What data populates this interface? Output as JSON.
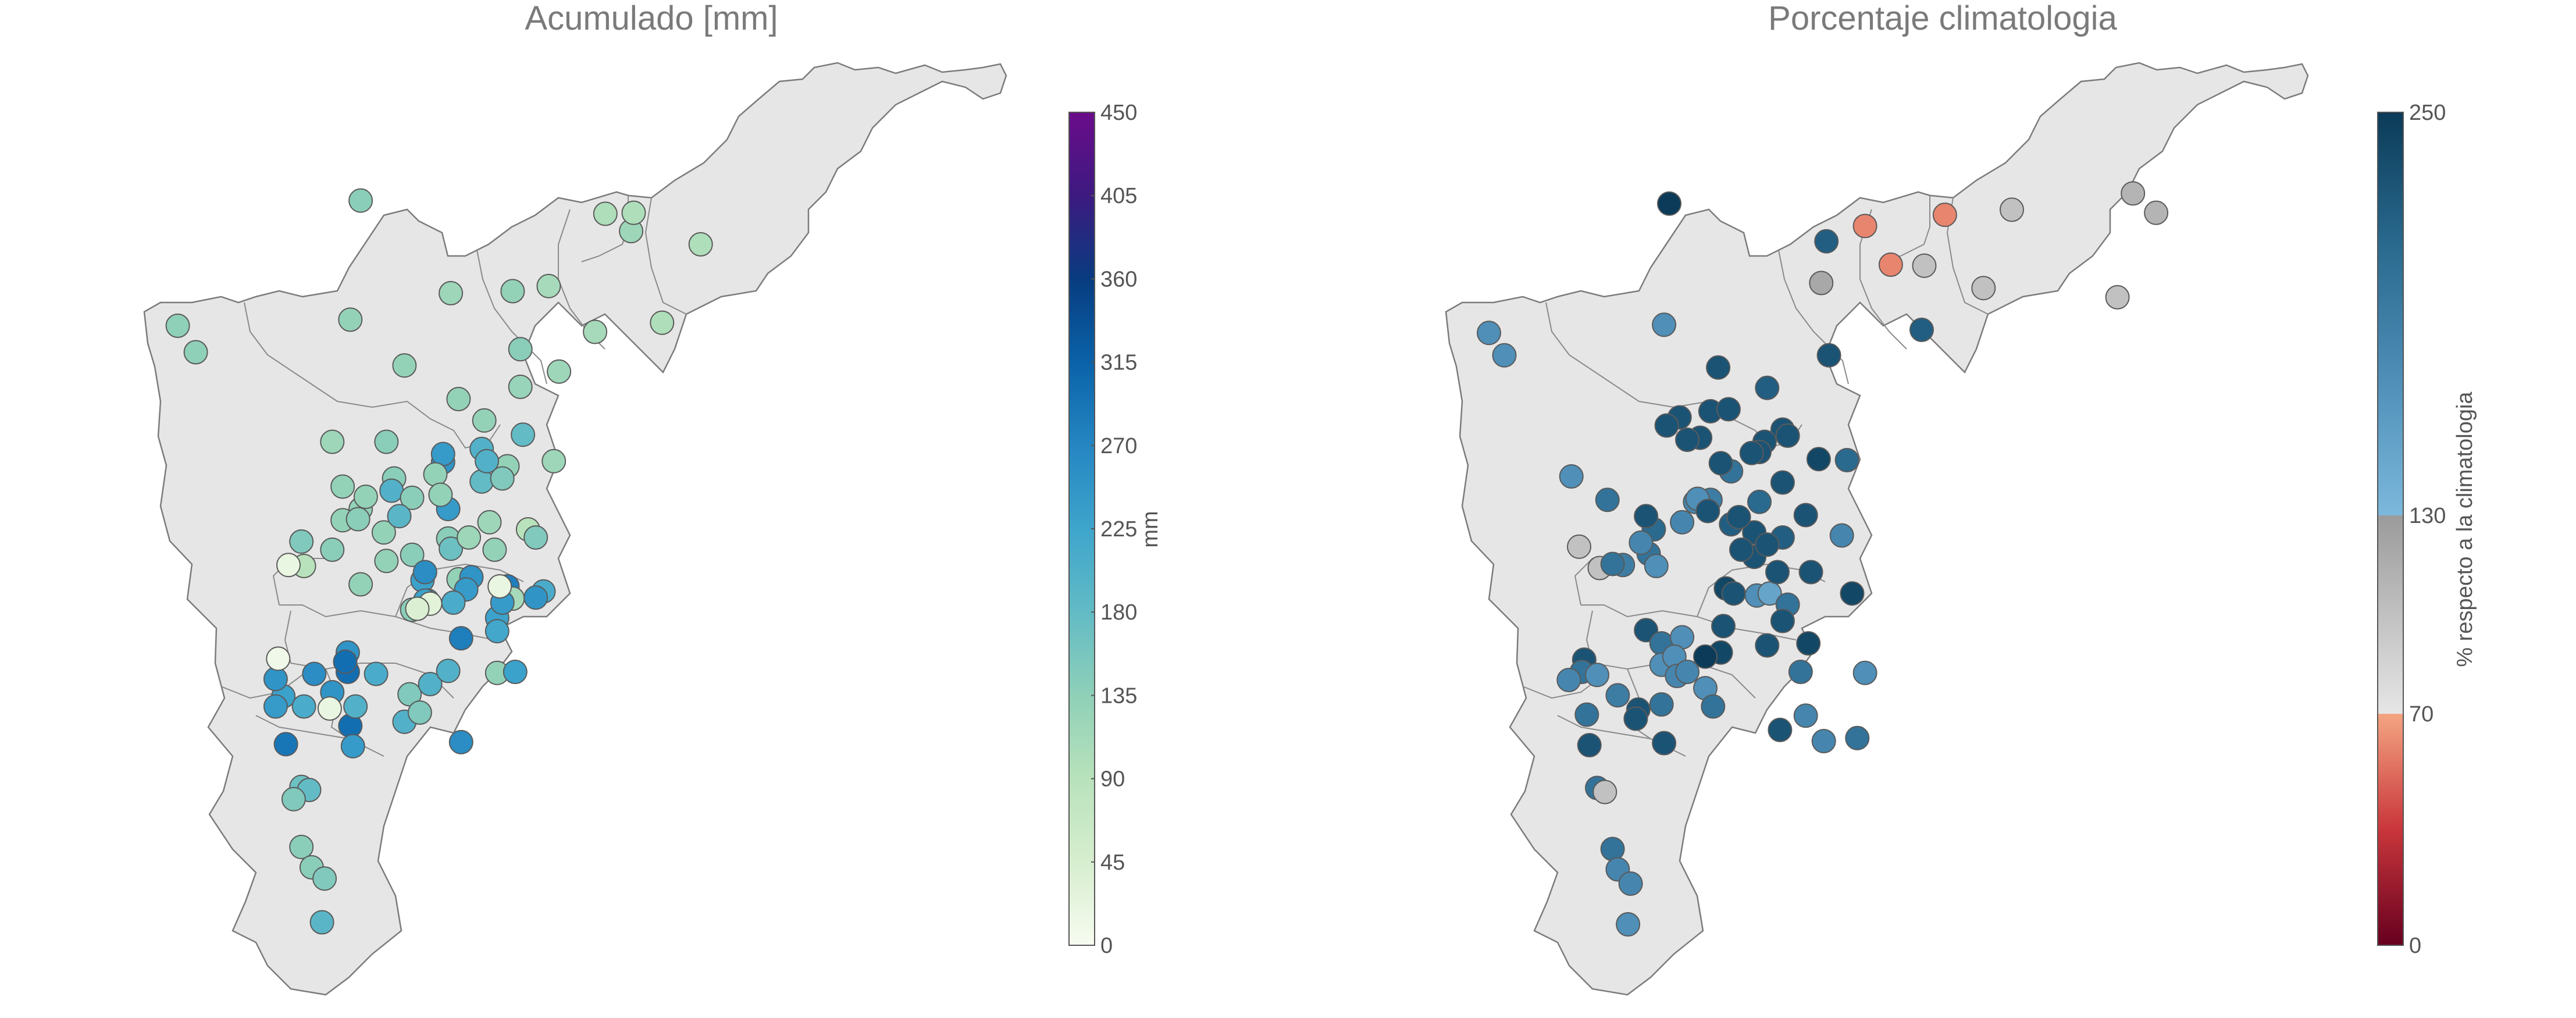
{
  "panels": {
    "left": {
      "title": "Acumulado [mm]",
      "colorbar": {
        "label": "mm",
        "min": 0,
        "max": 450,
        "ticks": [
          "0",
          "45",
          "90",
          "135",
          "180",
          "225",
          "270",
          "315",
          "360",
          "405",
          "450"
        ],
        "colors": [
          "#f7fcf0",
          "#d7eecf",
          "#b8e2bb",
          "#8fd0b8",
          "#62bbc5",
          "#3ea5cc",
          "#2586c2",
          "#0a62a8",
          "#083c80",
          "#3d1a80",
          "#6a0c8a"
        ]
      }
    },
    "right": {
      "title": "Porcentaje climatologia",
      "colorbar": {
        "label": "% respecto a la climatologia",
        "ticks": [
          "0",
          "70",
          "130",
          "250"
        ],
        "segments": [
          {
            "from": 0,
            "to": 70,
            "colors": [
              "#67001f",
              "#c9363b",
              "#f4a582"
            ]
          },
          {
            "from": 70,
            "to": 130,
            "colors": [
              "#e6e6e6",
              "#9b9b9b"
            ]
          },
          {
            "from": 130,
            "to": 250,
            "colors": [
              "#7cb8dc",
              "#4f8fb8",
              "#2a6a8f",
              "#0b3b58"
            ]
          }
        ]
      }
    }
  },
  "chart_data": [
    {
      "type": "scatter",
      "title": "Acumulado [mm]",
      "colorbar_label": "mm",
      "value_range": [
        0,
        450
      ],
      "points": [
        [
          0.14,
          0.197,
          140
        ],
        [
          0.069,
          0.32,
          135
        ],
        [
          0.076,
          0.346,
          135
        ],
        [
          0.136,
          0.314,
          130
        ],
        [
          0.157,
          0.359,
          130
        ],
        [
          0.178,
          0.392,
          130
        ],
        [
          0.202,
          0.38,
          125
        ],
        [
          0.217,
          0.365,
          120
        ],
        [
          0.231,
          0.326,
          110
        ],
        [
          0.257,
          0.317,
          100
        ],
        [
          0.245,
          0.227,
          120
        ],
        [
          0.199,
          0.286,
          130
        ],
        [
          0.175,
          0.288,
          120
        ],
        [
          0.213,
          0.281,
          110
        ],
        [
          0.246,
          0.209,
          100
        ],
        [
          0.272,
          0.24,
          100
        ],
        [
          0.235,
          0.21,
          100
        ],
        [
          0.202,
          0.343,
          140
        ],
        [
          0.129,
          0.434,
          120
        ],
        [
          0.149,
          0.523,
          130
        ],
        [
          0.15,
          0.434,
          140
        ],
        [
          0.203,
          0.427,
          180
        ],
        [
          0.188,
          0.413,
          130
        ],
        [
          0.14,
          0.574,
          130
        ],
        [
          0.15,
          0.551,
          130
        ],
        [
          0.178,
          0.569,
          130
        ],
        [
          0.14,
          0.5,
          130
        ],
        [
          0.133,
          0.478,
          130
        ],
        [
          0.129,
          0.54,
          140
        ],
        [
          0.16,
          0.545,
          140
        ],
        [
          0.153,
          0.47,
          140
        ],
        [
          0.197,
          0.458,
          130
        ],
        [
          0.187,
          0.473,
          180
        ],
        [
          0.133,
          0.511,
          130
        ],
        [
          0.117,
          0.532,
          150
        ],
        [
          0.118,
          0.556,
          90
        ],
        [
          0.112,
          0.555,
          20
        ],
        [
          0.152,
          0.482,
          200
        ],
        [
          0.142,
          0.488,
          130
        ],
        [
          0.139,
          0.51,
          140
        ],
        [
          0.16,
          0.489,
          140
        ],
        [
          0.155,
          0.507,
          190
        ],
        [
          0.174,
          0.5,
          240
        ],
        [
          0.172,
          0.454,
          250
        ],
        [
          0.172,
          0.446,
          240
        ],
        [
          0.169,
          0.466,
          130
        ],
        [
          0.171,
          0.486,
          130
        ],
        [
          0.187,
          0.441,
          200
        ],
        [
          0.174,
          0.529,
          140
        ],
        [
          0.175,
          0.539,
          170
        ],
        [
          0.192,
          0.54,
          130
        ],
        [
          0.19,
          0.513,
          120
        ],
        [
          0.182,
          0.528,
          120
        ],
        [
          0.164,
          0.57,
          230
        ],
        [
          0.183,
          0.567,
          250
        ],
        [
          0.181,
          0.579,
          240
        ],
        [
          0.165,
          0.562,
          260
        ],
        [
          0.16,
          0.599,
          140
        ],
        [
          0.205,
          0.52,
          90
        ],
        [
          0.189,
          0.453,
          200
        ],
        [
          0.195,
          0.47,
          150
        ],
        [
          0.215,
          0.453,
          120
        ],
        [
          0.211,
          0.581,
          210
        ],
        [
          0.197,
          0.576,
          280
        ],
        [
          0.199,
          0.588,
          110
        ],
        [
          0.208,
          0.587,
          250
        ],
        [
          0.135,
          0.641,
          250
        ],
        [
          0.135,
          0.66,
          300
        ],
        [
          0.11,
          0.684,
          230
        ],
        [
          0.111,
          0.731,
          290
        ],
        [
          0.107,
          0.667,
          250
        ],
        [
          0.107,
          0.694,
          240
        ],
        [
          0.108,
          0.647,
          10
        ],
        [
          0.122,
          0.662,
          260
        ],
        [
          0.134,
          0.65,
          300
        ],
        [
          0.129,
          0.68,
          250
        ],
        [
          0.136,
          0.713,
          300
        ],
        [
          0.138,
          0.694,
          200
        ],
        [
          0.128,
          0.696,
          20
        ],
        [
          0.118,
          0.694,
          210
        ],
        [
          0.137,
          0.733,
          240
        ],
        [
          0.146,
          0.662,
          210
        ],
        [
          0.157,
          0.709,
          200
        ],
        [
          0.159,
          0.682,
          150
        ],
        [
          0.163,
          0.7,
          150
        ],
        [
          0.167,
          0.672,
          200
        ],
        [
          0.166,
          0.59,
          210
        ],
        [
          0.176,
          0.592,
          210
        ],
        [
          0.193,
          0.607,
          230
        ],
        [
          0.195,
          0.592,
          240
        ],
        [
          0.117,
          0.773,
          170
        ],
        [
          0.12,
          0.776,
          180
        ],
        [
          0.114,
          0.785,
          150
        ],
        [
          0.117,
          0.832,
          140
        ],
        [
          0.121,
          0.852,
          140
        ],
        [
          0.126,
          0.863,
          150
        ],
        [
          0.125,
          0.906,
          190
        ],
        [
          0.179,
          0.729,
          260
        ],
        [
          0.193,
          0.62,
          220
        ],
        [
          0.174,
          0.659,
          200
        ],
        [
          0.193,
          0.661,
          130
        ],
        [
          0.179,
          0.627,
          280
        ],
        [
          0.2,
          0.66,
          230
        ],
        [
          0.165,
          0.59,
          230
        ],
        [
          0.167,
          0.593,
          30
        ],
        [
          0.162,
          0.598,
          40
        ],
        [
          0.194,
          0.576,
          20
        ],
        [
          0.208,
          0.528,
          150
        ]
      ]
    },
    {
      "type": "scatter",
      "title": "Porcentaje climatologia",
      "colorbar_label": "% respecto a la climatologia",
      "value_range": [
        0,
        250
      ],
      "points": [
        [
          0.648,
          0.2,
          250
        ],
        [
          0.578,
          0.327,
          170
        ],
        [
          0.584,
          0.349,
          170
        ],
        [
          0.646,
          0.319,
          170
        ],
        [
          0.667,
          0.361,
          230
        ],
        [
          0.686,
          0.381,
          220
        ],
        [
          0.71,
          0.349,
          230
        ],
        [
          0.709,
          0.237,
          220
        ],
        [
          0.734,
          0.26,
          60
        ],
        [
          0.707,
          0.278,
          120
        ],
        [
          0.724,
          0.222,
          60
        ],
        [
          0.755,
          0.211,
          60
        ],
        [
          0.781,
          0.206,
          100
        ],
        [
          0.77,
          0.283,
          100
        ],
        [
          0.747,
          0.261,
          100
        ],
        [
          0.746,
          0.324,
          220
        ],
        [
          0.828,
          0.19,
          110
        ],
        [
          0.837,
          0.209,
          110
        ],
        [
          0.822,
          0.292,
          100
        ],
        [
          0.652,
          0.41,
          230
        ],
        [
          0.664,
          0.404,
          230
        ],
        [
          0.66,
          0.43,
          230
        ],
        [
          0.671,
          0.402,
          230
        ],
        [
          0.692,
          0.422,
          230
        ],
        [
          0.655,
          0.432,
          230
        ],
        [
          0.647,
          0.418,
          230
        ],
        [
          0.672,
          0.463,
          200
        ],
        [
          0.685,
          0.434,
          230
        ],
        [
          0.683,
          0.444,
          230
        ],
        [
          0.68,
          0.445,
          230
        ],
        [
          0.668,
          0.455,
          230
        ],
        [
          0.692,
          0.474,
          230
        ],
        [
          0.706,
          0.451,
          240
        ],
        [
          0.694,
          0.428,
          230
        ],
        [
          0.717,
          0.452,
          210
        ],
        [
          0.683,
          0.493,
          210
        ],
        [
          0.681,
          0.523,
          230
        ],
        [
          0.681,
          0.547,
          230
        ],
        [
          0.692,
          0.528,
          220
        ],
        [
          0.701,
          0.506,
          230
        ],
        [
          0.686,
          0.535,
          230
        ],
        [
          0.672,
          0.515,
          220
        ],
        [
          0.664,
          0.491,
          190
        ],
        [
          0.658,
          0.493,
          180
        ],
        [
          0.642,
          0.52,
          210
        ],
        [
          0.64,
          0.544,
          200
        ],
        [
          0.637,
          0.533,
          180
        ],
        [
          0.63,
          0.555,
          190
        ],
        [
          0.643,
          0.556,
          170
        ],
        [
          0.613,
          0.537,
          100
        ],
        [
          0.621,
          0.558,
          100
        ],
        [
          0.626,
          0.554,
          200
        ],
        [
          0.61,
          0.468,
          170
        ],
        [
          0.624,
          0.491,
          200
        ],
        [
          0.639,
          0.507,
          230
        ],
        [
          0.653,
          0.513,
          180
        ],
        [
          0.659,
          0.49,
          170
        ],
        [
          0.663,
          0.502,
          230
        ],
        [
          0.675,
          0.508,
          230
        ],
        [
          0.676,
          0.54,
          230
        ],
        [
          0.67,
          0.578,
          240
        ],
        [
          0.673,
          0.583,
          230
        ],
        [
          0.682,
          0.585,
          170
        ],
        [
          0.687,
          0.583,
          150
        ],
        [
          0.69,
          0.562,
          230
        ],
        [
          0.715,
          0.526,
          180
        ],
        [
          0.719,
          0.583,
          240
        ],
        [
          0.694,
          0.594,
          200
        ],
        [
          0.703,
          0.562,
          230
        ],
        [
          0.692,
          0.61,
          230
        ],
        [
          0.686,
          0.634,
          230
        ],
        [
          0.639,
          0.619,
          230
        ],
        [
          0.645,
          0.632,
          200
        ],
        [
          0.615,
          0.648,
          230
        ],
        [
          0.614,
          0.66,
          200
        ],
        [
          0.62,
          0.663,
          170
        ],
        [
          0.616,
          0.702,
          200
        ],
        [
          0.617,
          0.732,
          230
        ],
        [
          0.609,
          0.668,
          180
        ],
        [
          0.628,
          0.683,
          190
        ],
        [
          0.636,
          0.697,
          230
        ],
        [
          0.635,
          0.706,
          230
        ],
        [
          0.645,
          0.692,
          200
        ],
        [
          0.646,
          0.73,
          230
        ],
        [
          0.645,
          0.653,
          170
        ],
        [
          0.653,
          0.626,
          170
        ],
        [
          0.662,
          0.676,
          170
        ],
        [
          0.665,
          0.694,
          200
        ],
        [
          0.668,
          0.641,
          240
        ],
        [
          0.669,
          0.615,
          230
        ],
        [
          0.699,
          0.66,
          200
        ],
        [
          0.701,
          0.703,
          180
        ],
        [
          0.708,
          0.728,
          180
        ],
        [
          0.724,
          0.661,
          170
        ],
        [
          0.691,
          0.717,
          230
        ],
        [
          0.702,
          0.632,
          240
        ],
        [
          0.721,
          0.725,
          200
        ],
        [
          0.62,
          0.774,
          200
        ],
        [
          0.623,
          0.778,
          100
        ],
        [
          0.626,
          0.834,
          200
        ],
        [
          0.628,
          0.854,
          180
        ],
        [
          0.633,
          0.868,
          180
        ],
        [
          0.632,
          0.908,
          170
        ],
        [
          0.65,
          0.645,
          170
        ],
        [
          0.651,
          0.664,
          180
        ],
        [
          0.662,
          0.645,
          250
        ],
        [
          0.655,
          0.66,
          180
        ]
      ]
    }
  ]
}
